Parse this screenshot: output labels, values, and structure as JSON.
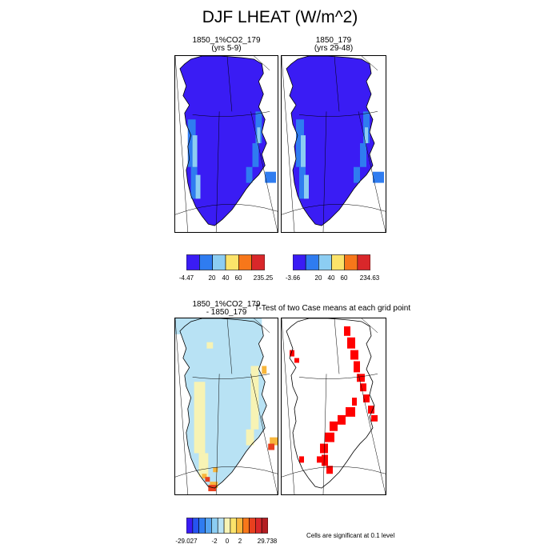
{
  "title": "DJF LHEAT (W/m^2)",
  "panels": {
    "top_left": {
      "title_line1": "1850_1%CO2_179",
      "title_line2": "(yrs 5-9)"
    },
    "top_right": {
      "title_line1": "1850_179",
      "title_line2": "(yrs 29-48)"
    },
    "bottom_left": {
      "title_line1": "1850_1%CO2_179",
      "title_line2": "- 1850_179"
    },
    "bottom_right": {
      "title": "T-Test of two Case means at each grid point"
    }
  },
  "colorbars": {
    "top_left": {
      "colors": [
        "#3a1cf4",
        "#2f7cf0",
        "#8ccdf2",
        "#fbe36a",
        "#f7771a",
        "#d9272a"
      ],
      "labels": [
        "-4.47",
        "20",
        "40",
        "60",
        "235.25"
      ]
    },
    "top_right": {
      "colors": [
        "#3a1cf4",
        "#2f7cf0",
        "#8ccdf2",
        "#fbe36a",
        "#f7771a",
        "#d9272a"
      ],
      "labels": [
        "-3.66",
        "20",
        "40",
        "60",
        "234.63"
      ]
    },
    "bottom": {
      "colors": [
        "#3a1cf4",
        "#2653f0",
        "#2f7cf0",
        "#53a3f1",
        "#8ccdf2",
        "#b8e2f4",
        "#f7f3b4",
        "#fbe36a",
        "#f8b63c",
        "#f7771a",
        "#e8401e",
        "#d9272a",
        "#b41e22"
      ],
      "labels": [
        "-29.027",
        "-2",
        "0",
        "2",
        "29.738"
      ]
    }
  },
  "footnote": "Cells are significant at 0.1 level"
}
